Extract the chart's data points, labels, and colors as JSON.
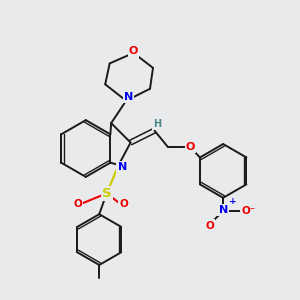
{
  "bg_color": "#e8eaec",
  "bond_color": "#1a1a1a",
  "N_color": "#0000ee",
  "O_color": "#ee0000",
  "S_color": "#cccc00",
  "H_color": "#4a8888",
  "lw": 1.4,
  "lw_double": 1.1,
  "fs": 7.5,
  "xlim": [
    0,
    10
  ],
  "ylim": [
    0,
    10
  ]
}
